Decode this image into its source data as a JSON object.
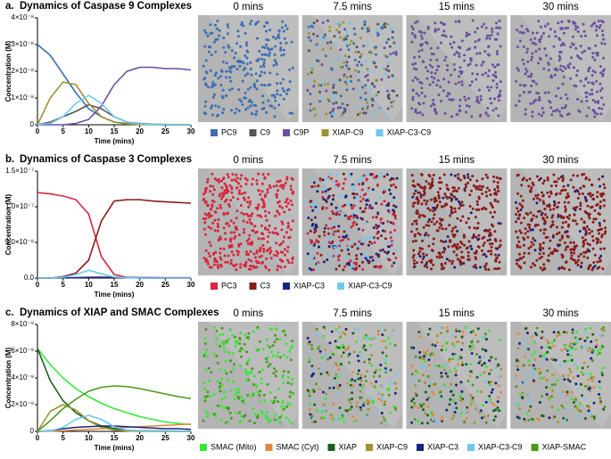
{
  "chart_data": [
    {
      "type": "line",
      "panel": "a.",
      "title": "Dynamics of Caspase 9 Complexes",
      "x_label": "Time (mins)",
      "y_label": "Concentration (M)",
      "snapshots": [
        "0 mins",
        "7.5 mins",
        "15 mins",
        "30 mins"
      ],
      "x": [
        0,
        2.5,
        5,
        7.5,
        10,
        12.5,
        15,
        17.5,
        20,
        22.5,
        25,
        27.5,
        30
      ],
      "xlim": [
        0,
        30
      ],
      "xticks": [
        0,
        5,
        10,
        15,
        20,
        25,
        30
      ],
      "ylim": [
        0,
        4e-08
      ],
      "yticks": [
        0,
        {
          "value": 1e-08,
          "label": "1×10⁻⁸"
        },
        {
          "value": 2e-08,
          "label": "2×10⁻⁸"
        },
        {
          "value": 3e-08,
          "label": "3×10⁻⁸"
        },
        {
          "value": 4e-08,
          "label": "4×10⁻⁸"
        }
      ],
      "series": [
        {
          "name": "PC9",
          "color": "#3a6fb5",
          "values": [
            3e-08,
            2.6e-08,
            1.9e-08,
            1.2e-08,
            6e-09,
            3e-09,
            1e-09,
            5e-10,
            2e-10,
            1e-10,
            0,
            0,
            0
          ]
        },
        {
          "name": "C9",
          "color": "#555555",
          "values": [
            0,
            1e-09,
            3e-09,
            5e-09,
            7.5e-09,
            6e-09,
            3e-09,
            1e-09,
            5e-10,
            2e-10,
            1e-10,
            0,
            0
          ]
        },
        {
          "name": "C9P",
          "color": "#6b4fa0",
          "values": [
            0,
            0,
            0,
            5e-10,
            2e-09,
            7e-09,
            1.5e-08,
            2e-08,
            2.15e-08,
            2.15e-08,
            2.1e-08,
            2.1e-08,
            2.05e-08
          ]
        },
        {
          "name": "XIAP-C9",
          "color": "#9c9431",
          "values": [
            0,
            1e-08,
            1.6e-08,
            1.5e-08,
            8e-09,
            3e-09,
            1e-09,
            3e-10,
            1e-10,
            0,
            0,
            0,
            0
          ]
        },
        {
          "name": "XIAP-C3-C9",
          "color": "#6ec8ee",
          "values": [
            0,
            5e-10,
            3e-09,
            8e-09,
            1.1e-08,
            8e-09,
            3e-09,
            1e-09,
            3e-10,
            1e-10,
            0,
            0,
            0
          ]
        }
      ]
    },
    {
      "type": "line",
      "panel": "b.",
      "title": "Dynamics of Caspase 3 Complexes",
      "x_label": "Time (mins)",
      "y_label": "Concentration (M)",
      "snapshots": [
        "0 mins",
        "7.5 mins",
        "15 mins",
        "30 mins"
      ],
      "x": [
        0,
        2.5,
        5,
        7.5,
        10,
        12.5,
        15,
        17.5,
        20,
        22.5,
        25,
        27.5,
        30
      ],
      "xlim": [
        0,
        30
      ],
      "xticks": [
        0,
        5,
        10,
        15,
        20,
        25,
        30
      ],
      "ylim": [
        0,
        1.5e-07
      ],
      "yticks": [
        {
          "value": 0,
          "label": "0.0"
        },
        {
          "value": 5e-08,
          "label": "5.0×10⁻⁸"
        },
        {
          "value": 1e-07,
          "label": "1.0×10⁻⁷"
        },
        {
          "value": 1.5e-07,
          "label": "1.5×10⁻⁷"
        }
      ],
      "series": [
        {
          "name": "PC3",
          "color": "#d7263d",
          "values": [
            1.2e-07,
            1.18e-07,
            1.15e-07,
            1.1e-07,
            9e-08,
            3e-08,
            5e-09,
            1e-09,
            0,
            0,
            0,
            0,
            0
          ]
        },
        {
          "name": "C3",
          "color": "#8b1a1a",
          "values": [
            0,
            0,
            2e-09,
            7e-09,
            2.5e-08,
            8e-08,
            1.08e-07,
            1.1e-07,
            1.1e-07,
            1.08e-07,
            1.07e-07,
            1.06e-07,
            1.05e-07
          ]
        },
        {
          "name": "XIAP-C3",
          "color": "#1a237e",
          "values": [
            0,
            0,
            2e-10,
            5e-10,
            1e-09,
            1.2e-09,
            1e-09,
            8e-10,
            6e-10,
            5e-10,
            4e-10,
            4e-10,
            4e-10
          ]
        },
        {
          "name": "XIAP-C3-C9",
          "color": "#6ec8ee",
          "values": [
            0,
            0,
            1e-09,
            5e-09,
            1.1e-08,
            6e-09,
            1.5e-09,
            5e-10,
            0,
            0,
            0,
            0,
            0
          ]
        }
      ]
    },
    {
      "type": "line",
      "panel": "c.",
      "title": "Dynamics of XIAP and SMAC Complexes",
      "x_label": "Time (mins)",
      "y_label": "Concentration (M)",
      "snapshots": [
        "0 mins",
        "7.5 mins",
        "15 mins",
        "30 mins"
      ],
      "x": [
        0,
        2.5,
        5,
        7.5,
        10,
        12.5,
        15,
        17.5,
        20,
        22.5,
        25,
        27.5,
        30
      ],
      "xlim": [
        0,
        30
      ],
      "xticks": [
        0,
        5,
        10,
        15,
        20,
        25,
        30
      ],
      "ylim": [
        0,
        8e-09
      ],
      "yticks": [
        0,
        {
          "value": 2e-09,
          "label": "2×10⁻⁹"
        },
        {
          "value": 4e-09,
          "label": "4×10⁻⁹"
        },
        {
          "value": 6e-09,
          "label": "6×10⁻⁹"
        },
        {
          "value": 8e-09,
          "label": "8×10⁻⁹"
        }
      ],
      "series": [
        {
          "name": "SMAC (Mito)",
          "color": "#39e639",
          "values": [
            6.2e-09,
            5e-09,
            4e-09,
            3.2e-09,
            2.6e-09,
            2.1e-09,
            1.7e-09,
            1.4e-09,
            1.1e-09,
            9e-10,
            7e-10,
            6e-10,
            5e-10
          ]
        },
        {
          "name": "SMAC (Cyt)",
          "color": "#e08a3c",
          "values": [
            0,
            1e-11,
            5e-11,
            1e-10,
            1.5e-10,
            2e-10,
            2.5e-10,
            3e-10,
            3.5e-10,
            4e-10,
            4.5e-10,
            5e-10,
            5.5e-10
          ]
        },
        {
          "name": "XIAP",
          "color": "#1b5e20",
          "values": [
            6.2e-09,
            3.8e-09,
            2.3e-09,
            1.4e-09,
            8e-10,
            4e-10,
            2e-10,
            1e-10,
            5e-11,
            3e-11,
            2e-11,
            1e-11,
            1e-11
          ]
        },
        {
          "name": "XIAP-C9",
          "color": "#9c9431",
          "values": [
            0,
            1.5e-09,
            2e-09,
            1.6e-09,
            8e-10,
            3e-10,
            1e-10,
            3e-11,
            0,
            0,
            0,
            0,
            0
          ]
        },
        {
          "name": "XIAP-C3",
          "color": "#1a237e",
          "values": [
            0,
            5e-11,
            2e-10,
            3e-10,
            3.5e-10,
            4e-10,
            4e-10,
            3.5e-10,
            3e-10,
            2.5e-10,
            2e-10,
            2e-10,
            1.5e-10
          ]
        },
        {
          "name": "XIAP-C3-C9",
          "color": "#6ec8ee",
          "values": [
            0,
            2e-11,
            3e-10,
            9e-10,
            1.2e-09,
            9e-10,
            3.5e-10,
            1e-10,
            3e-11,
            0,
            0,
            0,
            0
          ]
        },
        {
          "name": "XIAP-SMAC",
          "color": "#4c9a1c",
          "values": [
            0,
            8e-10,
            1.7e-09,
            2.4e-09,
            3e-09,
            3.3e-09,
            3.4e-09,
            3.35e-09,
            3.2e-09,
            3e-09,
            2.8e-09,
            2.6e-09,
            2.45e-09
          ]
        }
      ]
    }
  ]
}
